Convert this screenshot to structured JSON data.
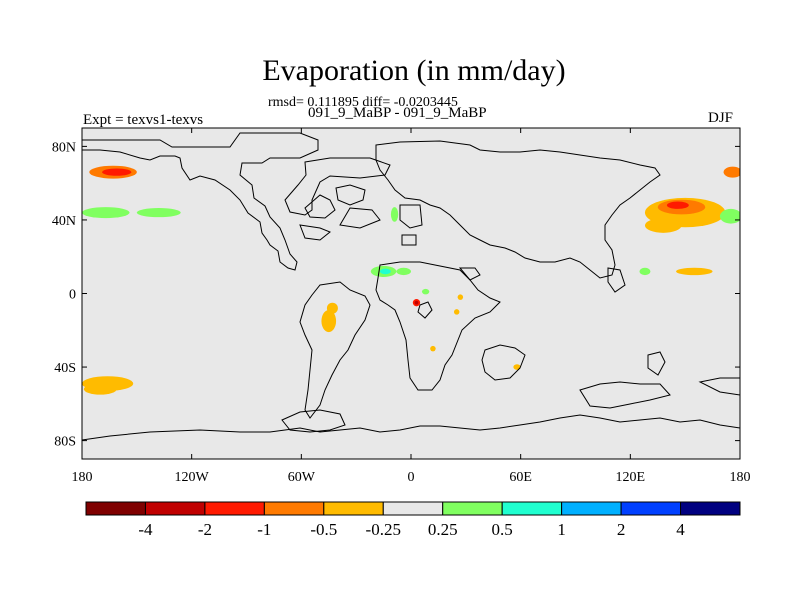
{
  "chart_data": {
    "type": "heatmap",
    "title": "Evaporation (in mm/day)",
    "stats_text": "rmsd= 0.111895 diff= -0.0203445",
    "run_label": "091_9_MaBP - 091_9_MaBP",
    "expt_label": "Expt = texvs1-texvs",
    "season": "DJF",
    "xlim": [
      -180,
      180
    ],
    "ylim": [
      -90,
      90
    ],
    "x_ticks": [
      {
        "value": -180,
        "label": "180"
      },
      {
        "value": -120,
        "label": "120W"
      },
      {
        "value": -60,
        "label": "60W"
      },
      {
        "value": 0,
        "label": "0"
      },
      {
        "value": 60,
        "label": "60E"
      },
      {
        "value": 120,
        "label": "120E"
      },
      {
        "value": 180,
        "label": "180"
      }
    ],
    "y_ticks": [
      {
        "value": 80,
        "label": "80N"
      },
      {
        "value": 40,
        "label": "40N"
      },
      {
        "value": 0,
        "label": "0"
      },
      {
        "value": -40,
        "label": "40S"
      },
      {
        "value": -80,
        "label": "80S"
      }
    ],
    "colorbar": {
      "colors": [
        "#7f0000",
        "#c00000",
        "#ff1a00",
        "#ff7a00",
        "#ffbb00",
        "#e8e8e8",
        "#80ff60",
        "#20ffd0",
        "#00b0ff",
        "#0040ff",
        "#000080"
      ],
      "labels": [
        "-4",
        "-2",
        "-1",
        "-0.5",
        "-0.25",
        "0.25",
        "0.5",
        "1",
        "2",
        "4"
      ]
    },
    "anomaly_regions": [
      {
        "lon": -163,
        "lat": 66,
        "rlon": 13,
        "rlat": 3.5,
        "level": "-0.5"
      },
      {
        "lon": -161,
        "lat": 66,
        "rlon": 8,
        "rlat": 2,
        "level": "-1"
      },
      {
        "lon": -167,
        "lat": 44,
        "rlon": 13,
        "rlat": 3,
        "level": "0.25"
      },
      {
        "lon": -138,
        "lat": 44,
        "rlon": 12,
        "rlat": 2.5,
        "level": "0.25"
      },
      {
        "lon": -166,
        "lat": -49,
        "rlon": 14,
        "rlat": 4,
        "level": "-0.25"
      },
      {
        "lon": -170,
        "lat": -52,
        "rlon": 9,
        "rlat": 3,
        "level": "-0.25"
      },
      {
        "lon": 150,
        "lat": 44,
        "rlon": 22,
        "rlat": 8,
        "level": "-0.25"
      },
      {
        "lon": 148,
        "lat": 47,
        "rlon": 13,
        "rlat": 4,
        "level": "-0.5"
      },
      {
        "lon": 146,
        "lat": 48,
        "rlon": 6,
        "rlat": 2,
        "level": "-1"
      },
      {
        "lon": 138,
        "lat": 37,
        "rlon": 10,
        "rlat": 4,
        "level": "-0.25"
      },
      {
        "lon": 155,
        "lat": 12,
        "rlon": 10,
        "rlat": 2,
        "level": "-0.25"
      },
      {
        "lon": 176,
        "lat": 66,
        "rlon": 5,
        "rlat": 3,
        "level": "-0.5"
      },
      {
        "lon": 175,
        "lat": 42,
        "rlon": 6,
        "rlat": 4,
        "level": "0.25"
      },
      {
        "lon": 128,
        "lat": 12,
        "rlon": 3,
        "rlat": 2,
        "level": "0.25"
      },
      {
        "lon": -15,
        "lat": 12,
        "rlon": 7,
        "rlat": 3,
        "level": "0.25"
      },
      {
        "lon": -14,
        "lat": 12,
        "rlon": 3,
        "rlat": 1.5,
        "level": "0.5"
      },
      {
        "lon": -4,
        "lat": 12,
        "rlon": 4,
        "rlat": 2,
        "level": "0.25"
      },
      {
        "lon": -9,
        "lat": 43,
        "rlon": 2,
        "rlat": 4,
        "level": "0.25"
      },
      {
        "lon": 8,
        "lat": 1,
        "rlon": 2,
        "rlat": 1.5,
        "level": "0.25"
      },
      {
        "lon": 3,
        "lat": -5,
        "rlon": 2,
        "rlat": 2,
        "level": "-1"
      },
      {
        "lon": 3,
        "lat": -5,
        "rlon": 1,
        "rlat": 1,
        "level": "-2"
      },
      {
        "lon": -45,
        "lat": -15,
        "rlon": 4,
        "rlat": 6,
        "level": "-0.25"
      },
      {
        "lon": -43,
        "lat": -8,
        "rlon": 3,
        "rlat": 3,
        "level": "-0.25"
      },
      {
        "lon": 58,
        "lat": -40,
        "rlon": 2,
        "rlat": 1.5,
        "level": "-0.25"
      },
      {
        "lon": 12,
        "lat": -30,
        "rlon": 1.5,
        "rlat": 1.5,
        "level": "-0.25"
      },
      {
        "lon": 25,
        "lat": -10,
        "rlon": 1.5,
        "rlat": 1.5,
        "level": "-0.25"
      },
      {
        "lon": 27,
        "lat": -2,
        "rlon": 1.5,
        "rlat": 1.5,
        "level": "-0.25"
      }
    ]
  }
}
